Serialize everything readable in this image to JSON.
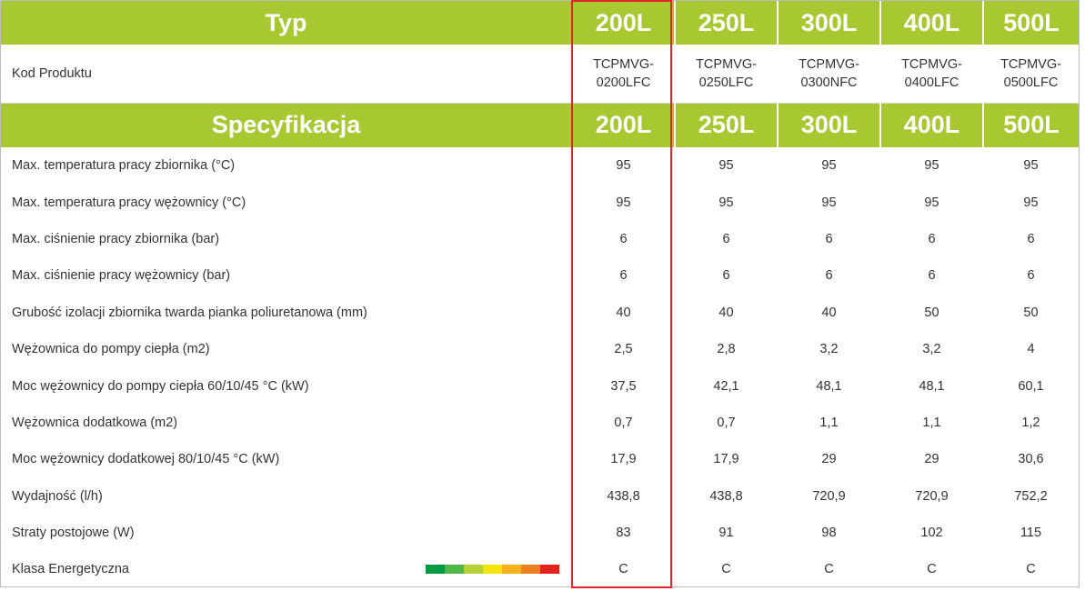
{
  "header": {
    "typ_label": "Typ",
    "spec_label": "Specyfikacja",
    "volumes": [
      "200L",
      "250L",
      "300L",
      "400L",
      "500L"
    ]
  },
  "product_code": {
    "label": "Kod Produktu",
    "codes": [
      [
        "TCPMVG-",
        "0200LFC"
      ],
      [
        "TCPMVG-",
        "0250LFC"
      ],
      [
        "TCPMVG-",
        "0300NFC"
      ],
      [
        "TCPMVG-",
        "0400LFC"
      ],
      [
        "TCPMVG-",
        "0500LFC"
      ]
    ]
  },
  "rows": [
    {
      "label": "Max. temperatura pracy zbiornika (°C)",
      "values": [
        "95",
        "95",
        "95",
        "95",
        "95"
      ]
    },
    {
      "label": "Max. temperatura pracy wężownicy (°C)",
      "values": [
        "95",
        "95",
        "95",
        "95",
        "95"
      ]
    },
    {
      "label": "Max. ciśnienie pracy zbiornika (bar)",
      "values": [
        "6",
        "6",
        "6",
        "6",
        "6"
      ]
    },
    {
      "label": "Max. ciśnienie pracy wężownicy (bar)",
      "values": [
        "6",
        "6",
        "6",
        "6",
        "6"
      ]
    },
    {
      "label": "Grubość izolacji zbiornika twarda pianka poliuretanowa  (mm)",
      "values": [
        "40",
        "40",
        "40",
        "50",
        "50"
      ]
    },
    {
      "label": "Wężownica do pompy ciepła (m2)",
      "values": [
        "2,5",
        "2,8",
        "3,2",
        "3,2",
        "4"
      ]
    },
    {
      "label": "Moc wężownicy do pompy ciepła  60/10/45 °C (kW)",
      "values": [
        "37,5",
        "42,1",
        "48,1",
        "48,1",
        "60,1"
      ]
    },
    {
      "label": "Wężownica dodatkowa (m2)",
      "values": [
        "0,7",
        "0,7",
        "1,1",
        "1,1",
        "1,2"
      ]
    },
    {
      "label": "Moc wężownicy dodatkowej 80/10/45 °C (kW)",
      "values": [
        "17,9",
        "17,9",
        "29",
        "29",
        "30,6"
      ]
    },
    {
      "label": "Wydajność (l/h)",
      "values": [
        "438,8",
        "438,8",
        "720,9",
        "720,9",
        "752,2"
      ]
    },
    {
      "label": "Straty postojowe (W)",
      "values": [
        "83",
        "91",
        "98",
        "102",
        "115"
      ]
    },
    {
      "label": "Klasa Energetyczna",
      "values": [
        "C",
        "C",
        "C",
        "C",
        "C"
      ]
    }
  ],
  "energy_scale_colors": [
    "#009a44",
    "#50b848",
    "#b5cf34",
    "#f5e400",
    "#f9b21b",
    "#ef7d22",
    "#e3211b"
  ],
  "colors": {
    "header_green": "#a8c831",
    "highlight_red": "#e0262d"
  }
}
